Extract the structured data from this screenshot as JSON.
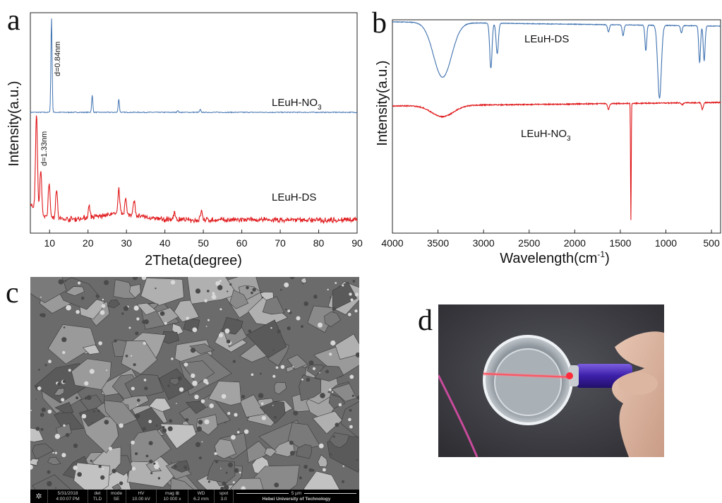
{
  "panels": {
    "a": "a",
    "b": "b",
    "c": "c",
    "d": "d"
  },
  "chart_data": [
    {
      "type": "line",
      "panel": "a",
      "xlabel": "2Theta(degree)",
      "ylabel": "Intensity(a.u.)",
      "xlim": [
        5,
        90
      ],
      "xticks": [
        "10",
        "20",
        "30",
        "40",
        "50",
        "60",
        "70",
        "80",
        "90"
      ],
      "grid": false,
      "series": [
        {
          "name": "LEuH-NO3",
          "name_main": "LEuH-NO",
          "name_sub": "3",
          "color": "#3f72b0",
          "peaks": [
            {
              "x": 10.5,
              "h": 1.0
            },
            {
              "x": 21.1,
              "h": 0.18
            },
            {
              "x": 28.0,
              "h": 0.14
            },
            {
              "x": 43.3,
              "h": 0.02
            },
            {
              "x": 49.2,
              "h": 0.03
            }
          ]
        },
        {
          "name": "LEuH-DS",
          "name_main": "LEuH-DS",
          "name_sub": "",
          "color": "#e0191c",
          "peaks": [
            {
              "x": 6.6,
              "h": 1.0
            },
            {
              "x": 7.7,
              "h": 0.45
            },
            {
              "x": 9.9,
              "h": 0.35
            },
            {
              "x": 11.8,
              "h": 0.3
            },
            {
              "x": 20.3,
              "h": 0.12
            },
            {
              "x": 28.0,
              "h": 0.27
            },
            {
              "x": 29.8,
              "h": 0.16
            },
            {
              "x": 32.0,
              "h": 0.16
            },
            {
              "x": 42.5,
              "h": 0.08
            },
            {
              "x": 49.5,
              "h": 0.1
            }
          ]
        }
      ],
      "annotations": [
        "d=0.84nm",
        "d=1.33nm"
      ]
    },
    {
      "type": "line",
      "panel": "b",
      "xlabel_main": "Wavelength(cm",
      "xlabel_sup": "-1",
      "xlabel_end": ")",
      "ylabel": "Intensity(a.u.)",
      "xlim": [
        4000,
        400
      ],
      "xticks": [
        "4000",
        "3500",
        "3000",
        "2500",
        "2000",
        "1500",
        "1000",
        "500"
      ],
      "grid": false,
      "series": [
        {
          "name": "LEuH-DS",
          "name_main": "LEuH-DS",
          "name_sub": "",
          "color": "#3f72b0",
          "bands": [
            {
              "x": 3450,
              "d": 0.75
            },
            {
              "x": 2920,
              "d": 0.62
            },
            {
              "x": 2850,
              "d": 0.42
            },
            {
              "x": 1630,
              "d": 0.1
            },
            {
              "x": 1470,
              "d": 0.15
            },
            {
              "x": 1220,
              "d": 0.35
            },
            {
              "x": 1070,
              "d": 1.0
            },
            {
              "x": 830,
              "d": 0.1
            },
            {
              "x": 630,
              "d": 0.5
            },
            {
              "x": 580,
              "d": 0.48
            }
          ]
        },
        {
          "name": "LEuH-NO3",
          "name_main": "LEuH-NO",
          "name_sub": "3",
          "color": "#e0191c",
          "bands": [
            {
              "x": 3450,
              "d": 0.3
            },
            {
              "x": 1630,
              "d": 0.15
            },
            {
              "x": 1384,
              "d": 1.0
            },
            {
              "x": 820,
              "d": 0.05
            },
            {
              "x": 600,
              "d": 0.18
            }
          ]
        }
      ]
    }
  ],
  "sem": {
    "date": "5/31/2018",
    "time": "4:00:07 PM",
    "det_label": "det",
    "det_value": "TLD",
    "mode_label": "mode",
    "mode_value": "SE",
    "hv_label": "HV",
    "hv_value": "10.00 kV",
    "mag_label": "mag ⊞",
    "mag_value": "10 000 x",
    "wd_label": "WD",
    "wd_value": "6.2 mm",
    "spot_label": "spot",
    "spot_value": "3.0",
    "scale_label": "5 μm",
    "institution": "Hebei University of Technology"
  }
}
